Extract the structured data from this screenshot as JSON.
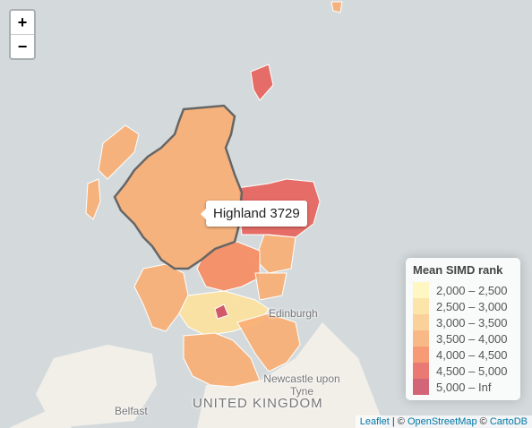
{
  "zoom_controls": {
    "zoom_in": "+",
    "zoom_out": "−"
  },
  "tooltip": "Highland 3729",
  "legend": {
    "title": "Mean SIMD rank",
    "items": [
      {
        "label": "2,000 – 2,500",
        "color": "#fff6b8"
      },
      {
        "label": "2,500 – 3,000",
        "color": "#fde19c"
      },
      {
        "label": "3,000 – 3,500",
        "color": "#fcc98a"
      },
      {
        "label": "3,500 – 4,000",
        "color": "#f9ad72"
      },
      {
        "label": "4,000 – 4,500",
        "color": "#f6895e"
      },
      {
        "label": "4,500 – 5,000",
        "color": "#e8615a"
      },
      {
        "label": "5,000 – Inf",
        "color": "#cc4a62"
      }
    ]
  },
  "place_labels": {
    "edinburgh": "Edinburgh",
    "newcastle": "Newcastle upon Tyne",
    "belfast": "Belfast",
    "country": "UNITED KINGDOM"
  },
  "attribution": [
    "Leaflet",
    " | © ",
    "OpenStreetMap",
    " © ",
    "CartoDB"
  ]
}
